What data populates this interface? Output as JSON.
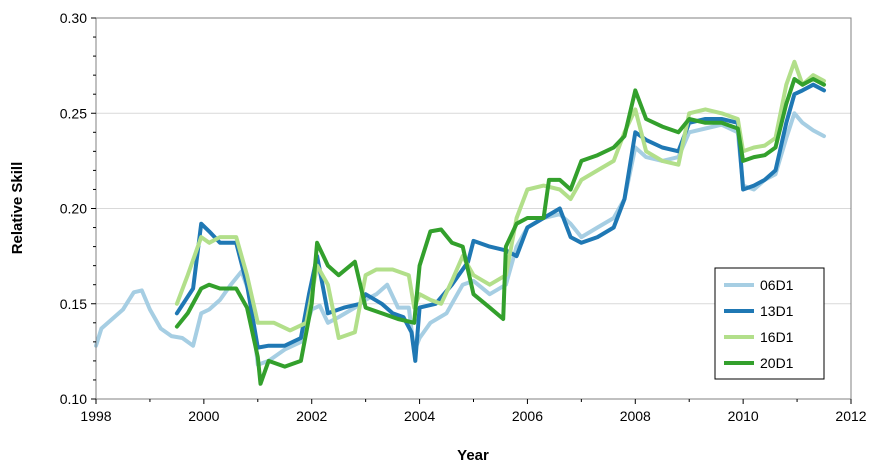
{
  "chart_data": {
    "type": "line",
    "title": "",
    "xlabel": "Year",
    "ylabel": "Relative Skill",
    "xlim": [
      1998,
      2012
    ],
    "ylim": [
      0.1,
      0.3
    ],
    "x_ticks": [
      1998,
      2000,
      2002,
      2004,
      2006,
      2008,
      2010,
      2012
    ],
    "x_tick_labels": [
      "1998",
      "2000",
      "2002",
      "2004",
      "2006",
      "2008",
      "2010",
      "2012"
    ],
    "y_ticks": [
      0.1,
      0.15,
      0.2,
      0.25,
      0.3
    ],
    "y_tick_labels": [
      "0.10",
      "0.15",
      "0.20",
      "0.25",
      "0.30"
    ],
    "grid": "horizontal",
    "legend_position": "bottom-right",
    "series": [
      {
        "name": "06D1",
        "color": "#a6cee3",
        "points": [
          [
            1998.0,
            0.128
          ],
          [
            1998.1,
            0.137
          ],
          [
            1998.3,
            0.142
          ],
          [
            1998.5,
            0.147
          ],
          [
            1998.7,
            0.156
          ],
          [
            1998.85,
            0.157
          ],
          [
            1999.0,
            0.147
          ],
          [
            1999.2,
            0.137
          ],
          [
            1999.4,
            0.133
          ],
          [
            1999.6,
            0.132
          ],
          [
            1999.8,
            0.128
          ],
          [
            1999.95,
            0.145
          ],
          [
            2000.1,
            0.147
          ],
          [
            2000.3,
            0.152
          ],
          [
            2000.5,
            0.16
          ],
          [
            2000.7,
            0.167
          ],
          [
            2000.85,
            0.155
          ],
          [
            2001.0,
            0.118
          ],
          [
            2001.2,
            0.12
          ],
          [
            2001.5,
            0.126
          ],
          [
            2001.8,
            0.13
          ],
          [
            2002.0,
            0.147
          ],
          [
            2002.15,
            0.149
          ],
          [
            2002.3,
            0.14
          ],
          [
            2002.5,
            0.143
          ],
          [
            2002.8,
            0.148
          ],
          [
            2003.0,
            0.152
          ],
          [
            2003.2,
            0.155
          ],
          [
            2003.4,
            0.16
          ],
          [
            2003.6,
            0.148
          ],
          [
            2003.8,
            0.148
          ],
          [
            2003.9,
            0.125
          ],
          [
            2004.0,
            0.132
          ],
          [
            2004.2,
            0.14
          ],
          [
            2004.5,
            0.145
          ],
          [
            2004.8,
            0.16
          ],
          [
            2005.0,
            0.162
          ],
          [
            2005.3,
            0.155
          ],
          [
            2005.6,
            0.16
          ],
          [
            2005.8,
            0.18
          ],
          [
            2006.0,
            0.19
          ],
          [
            2006.3,
            0.195
          ],
          [
            2006.6,
            0.197
          ],
          [
            2006.8,
            0.192
          ],
          [
            2007.0,
            0.185
          ],
          [
            2007.3,
            0.19
          ],
          [
            2007.6,
            0.195
          ],
          [
            2007.8,
            0.205
          ],
          [
            2008.0,
            0.232
          ],
          [
            2008.2,
            0.227
          ],
          [
            2008.5,
            0.225
          ],
          [
            2008.8,
            0.227
          ],
          [
            2009.0,
            0.24
          ],
          [
            2009.3,
            0.242
          ],
          [
            2009.6,
            0.244
          ],
          [
            2009.9,
            0.24
          ],
          [
            2010.0,
            0.212
          ],
          [
            2010.2,
            0.21
          ],
          [
            2010.4,
            0.215
          ],
          [
            2010.6,
            0.218
          ],
          [
            2010.8,
            0.237
          ],
          [
            2010.95,
            0.25
          ],
          [
            2011.1,
            0.245
          ],
          [
            2011.3,
            0.241
          ],
          [
            2011.5,
            0.238
          ]
        ]
      },
      {
        "name": "13D1",
        "color": "#1f78b4",
        "points": [
          [
            1999.5,
            0.145
          ],
          [
            1999.8,
            0.158
          ],
          [
            1999.95,
            0.192
          ],
          [
            2000.1,
            0.188
          ],
          [
            2000.3,
            0.182
          ],
          [
            2000.6,
            0.182
          ],
          [
            2000.8,
            0.16
          ],
          [
            2001.0,
            0.127
          ],
          [
            2001.2,
            0.128
          ],
          [
            2001.5,
            0.128
          ],
          [
            2001.8,
            0.132
          ],
          [
            2001.95,
            0.155
          ],
          [
            2002.1,
            0.175
          ],
          [
            2002.3,
            0.145
          ],
          [
            2002.6,
            0.148
          ],
          [
            2002.9,
            0.15
          ],
          [
            2003.0,
            0.155
          ],
          [
            2003.3,
            0.15
          ],
          [
            2003.5,
            0.145
          ],
          [
            2003.7,
            0.143
          ],
          [
            2003.85,
            0.135
          ],
          [
            2003.92,
            0.12
          ],
          [
            2004.0,
            0.148
          ],
          [
            2004.3,
            0.15
          ],
          [
            2004.6,
            0.16
          ],
          [
            2004.9,
            0.172
          ],
          [
            2005.0,
            0.183
          ],
          [
            2005.3,
            0.18
          ],
          [
            2005.6,
            0.178
          ],
          [
            2005.8,
            0.175
          ],
          [
            2006.0,
            0.19
          ],
          [
            2006.3,
            0.195
          ],
          [
            2006.6,
            0.2
          ],
          [
            2006.8,
            0.185
          ],
          [
            2007.0,
            0.182
          ],
          [
            2007.3,
            0.185
          ],
          [
            2007.6,
            0.19
          ],
          [
            2007.8,
            0.205
          ],
          [
            2008.0,
            0.24
          ],
          [
            2008.2,
            0.236
          ],
          [
            2008.5,
            0.232
          ],
          [
            2008.8,
            0.23
          ],
          [
            2009.0,
            0.245
          ],
          [
            2009.3,
            0.247
          ],
          [
            2009.6,
            0.247
          ],
          [
            2009.9,
            0.245
          ],
          [
            2010.0,
            0.21
          ],
          [
            2010.2,
            0.212
          ],
          [
            2010.4,
            0.215
          ],
          [
            2010.6,
            0.22
          ],
          [
            2010.8,
            0.245
          ],
          [
            2010.95,
            0.26
          ],
          [
            2011.1,
            0.262
          ],
          [
            2011.3,
            0.265
          ],
          [
            2011.5,
            0.262
          ]
        ]
      },
      {
        "name": "16D1",
        "color": "#b2df8a",
        "points": [
          [
            1999.5,
            0.15
          ],
          [
            1999.7,
            0.165
          ],
          [
            1999.95,
            0.185
          ],
          [
            2000.1,
            0.182
          ],
          [
            2000.3,
            0.185
          ],
          [
            2000.6,
            0.185
          ],
          [
            2000.8,
            0.165
          ],
          [
            2001.0,
            0.14
          ],
          [
            2001.3,
            0.14
          ],
          [
            2001.6,
            0.136
          ],
          [
            2001.9,
            0.14
          ],
          [
            2002.0,
            0.155
          ],
          [
            2002.1,
            0.17
          ],
          [
            2002.3,
            0.16
          ],
          [
            2002.5,
            0.132
          ],
          [
            2002.8,
            0.135
          ],
          [
            2003.0,
            0.165
          ],
          [
            2003.2,
            0.168
          ],
          [
            2003.5,
            0.168
          ],
          [
            2003.8,
            0.165
          ],
          [
            2003.9,
            0.148
          ],
          [
            2004.0,
            0.155
          ],
          [
            2004.2,
            0.152
          ],
          [
            2004.4,
            0.15
          ],
          [
            2004.6,
            0.162
          ],
          [
            2004.8,
            0.175
          ],
          [
            2005.0,
            0.165
          ],
          [
            2005.3,
            0.16
          ],
          [
            2005.6,
            0.165
          ],
          [
            2005.8,
            0.195
          ],
          [
            2006.0,
            0.21
          ],
          [
            2006.3,
            0.212
          ],
          [
            2006.6,
            0.21
          ],
          [
            2006.8,
            0.205
          ],
          [
            2007.0,
            0.215
          ],
          [
            2007.3,
            0.22
          ],
          [
            2007.6,
            0.225
          ],
          [
            2007.8,
            0.24
          ],
          [
            2008.0,
            0.252
          ],
          [
            2008.2,
            0.23
          ],
          [
            2008.5,
            0.225
          ],
          [
            2008.8,
            0.223
          ],
          [
            2009.0,
            0.25
          ],
          [
            2009.3,
            0.252
          ],
          [
            2009.6,
            0.25
          ],
          [
            2009.9,
            0.247
          ],
          [
            2010.0,
            0.23
          ],
          [
            2010.2,
            0.232
          ],
          [
            2010.4,
            0.233
          ],
          [
            2010.6,
            0.237
          ],
          [
            2010.8,
            0.265
          ],
          [
            2010.95,
            0.277
          ],
          [
            2011.1,
            0.265
          ],
          [
            2011.3,
            0.27
          ],
          [
            2011.5,
            0.267
          ]
        ]
      },
      {
        "name": "20D1",
        "color": "#33a02c",
        "points": [
          [
            1999.5,
            0.138
          ],
          [
            1999.7,
            0.145
          ],
          [
            1999.95,
            0.158
          ],
          [
            2000.1,
            0.16
          ],
          [
            2000.3,
            0.158
          ],
          [
            2000.6,
            0.158
          ],
          [
            2000.8,
            0.148
          ],
          [
            2001.0,
            0.122
          ],
          [
            2001.05,
            0.108
          ],
          [
            2001.2,
            0.12
          ],
          [
            2001.5,
            0.117
          ],
          [
            2001.8,
            0.12
          ],
          [
            2002.0,
            0.15
          ],
          [
            2002.1,
            0.182
          ],
          [
            2002.3,
            0.17
          ],
          [
            2002.5,
            0.165
          ],
          [
            2002.8,
            0.172
          ],
          [
            2003.0,
            0.148
          ],
          [
            2003.3,
            0.145
          ],
          [
            2003.6,
            0.142
          ],
          [
            2003.9,
            0.14
          ],
          [
            2004.0,
            0.17
          ],
          [
            2004.2,
            0.188
          ],
          [
            2004.4,
            0.189
          ],
          [
            2004.6,
            0.182
          ],
          [
            2004.8,
            0.18
          ],
          [
            2005.0,
            0.155
          ],
          [
            2005.3,
            0.148
          ],
          [
            2005.55,
            0.142
          ],
          [
            2005.6,
            0.18
          ],
          [
            2005.8,
            0.192
          ],
          [
            2006.0,
            0.195
          ],
          [
            2006.3,
            0.195
          ],
          [
            2006.4,
            0.215
          ],
          [
            2006.6,
            0.215
          ],
          [
            2006.8,
            0.21
          ],
          [
            2007.0,
            0.225
          ],
          [
            2007.3,
            0.228
          ],
          [
            2007.6,
            0.232
          ],
          [
            2007.8,
            0.238
          ],
          [
            2008.0,
            0.262
          ],
          [
            2008.2,
            0.247
          ],
          [
            2008.5,
            0.243
          ],
          [
            2008.8,
            0.24
          ],
          [
            2009.0,
            0.247
          ],
          [
            2009.3,
            0.245
          ],
          [
            2009.6,
            0.245
          ],
          [
            2009.9,
            0.242
          ],
          [
            2010.0,
            0.225
          ],
          [
            2010.2,
            0.227
          ],
          [
            2010.4,
            0.228
          ],
          [
            2010.6,
            0.232
          ],
          [
            2010.8,
            0.255
          ],
          [
            2010.95,
            0.268
          ],
          [
            2011.1,
            0.265
          ],
          [
            2011.3,
            0.268
          ],
          [
            2011.5,
            0.265
          ]
        ]
      }
    ]
  }
}
